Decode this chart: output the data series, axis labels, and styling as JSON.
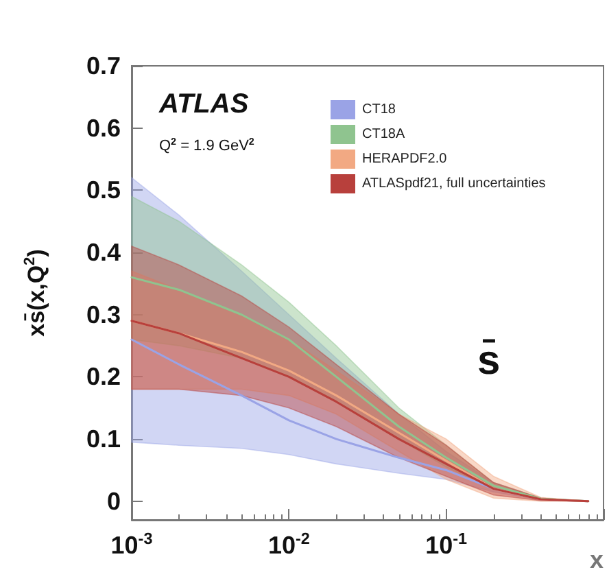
{
  "chart_data": {
    "type": "line",
    "ylabel": "xs̄(x,Q$^{2}$)",
    "xlabel": "x",
    "log": "x",
    "grid": false,
    "legend": "top right",
    "marker": "none",
    "line_style": "solid",
    "annotations": [
      "ATLAS",
      "Q$^{2}$ = 1.9 GeV$^{2}$",
      "s̄"
    ],
    "xlim": [
      0.001,
      1
    ],
    "xticks": [
      {
        "value": 0.001,
        "label": "10$^{-3}$"
      },
      {
        "value": 0.01,
        "label": "10$^{-2}$"
      },
      {
        "value": 0.1,
        "label": "10$^{-1}$"
      }
    ],
    "ylim": [
      -0.03,
      0.7
    ],
    "yticks": [
      0,
      0.1,
      0.2,
      0.3,
      0.4,
      0.5,
      0.6,
      0.7
    ],
    "x": [
      0.001,
      0.002,
      0.005,
      0.01,
      0.02,
      0.05,
      0.1,
      0.2,
      0.4,
      0.8
    ],
    "series": [
      {
        "name": "CT18",
        "color": "#9aa3e6",
        "values": [
          0.26,
          0.22,
          0.17,
          0.13,
          0.1,
          0.07,
          0.05,
          0.02,
          0.003,
          0
        ],
        "lower": [
          0.095,
          0.09,
          0.085,
          0.075,
          0.06,
          0.045,
          0.035,
          0.015,
          0.002,
          0
        ],
        "upper": [
          0.52,
          0.46,
          0.37,
          0.3,
          0.23,
          0.14,
          0.08,
          0.03,
          0.005,
          0
        ]
      },
      {
        "name": "CT18A",
        "color": "#8fc48f",
        "values": [
          0.36,
          0.34,
          0.3,
          0.26,
          0.2,
          0.12,
          0.07,
          0.025,
          0.004,
          0
        ],
        "lower": [
          0.26,
          0.25,
          0.23,
          0.2,
          0.16,
          0.1,
          0.055,
          0.02,
          0.003,
          0
        ],
        "upper": [
          0.49,
          0.45,
          0.38,
          0.32,
          0.25,
          0.15,
          0.09,
          0.03,
          0.005,
          0
        ]
      },
      {
        "name": "HERAPDF2.0",
        "color": "#f2a983",
        "values": [
          0.29,
          0.27,
          0.24,
          0.21,
          0.17,
          0.11,
          0.065,
          0.02,
          0.003,
          0
        ],
        "lower": [
          0.18,
          0.18,
          0.18,
          0.17,
          0.14,
          0.08,
          0.035,
          0.005,
          0,
          0
        ],
        "upper": [
          0.37,
          0.34,
          0.3,
          0.26,
          0.21,
          0.14,
          0.1,
          0.04,
          0.006,
          0
        ]
      },
      {
        "name": "ATLASpdf21, full uncertainties",
        "color": "#b8403c",
        "values": [
          0.29,
          0.27,
          0.23,
          0.2,
          0.16,
          0.1,
          0.06,
          0.02,
          0.003,
          0
        ],
        "lower": [
          0.18,
          0.18,
          0.17,
          0.15,
          0.12,
          0.07,
          0.04,
          0.01,
          0.001,
          0
        ],
        "upper": [
          0.41,
          0.38,
          0.33,
          0.28,
          0.22,
          0.14,
          0.09,
          0.03,
          0.005,
          0
        ]
      }
    ]
  }
}
